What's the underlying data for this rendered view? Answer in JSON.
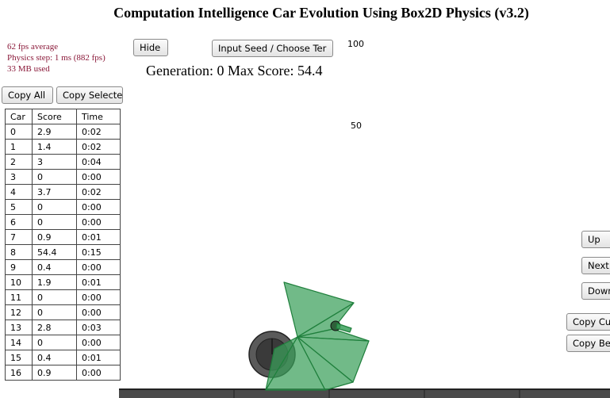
{
  "title": "Computation Intelligence Car Evolution Using Box2D Physics (v3.2)",
  "stats": [
    "62 fps average",
    "Physics step: 1 ms (882 fps)",
    "33 MB used"
  ],
  "buttons": {
    "hide": "Hide",
    "seed": "Input Seed / Choose Ter",
    "copy_all": "Copy All",
    "copy_selected": "Copy Selecte",
    "up": "Up",
    "next": "Next",
    "down": "Down",
    "copy_current": "Copy Cu",
    "copy_best": "Copy Be"
  },
  "generation_line": "Generation: 0  Max Score: 54.4",
  "graph_scale": {
    "top": "100",
    "mid": "50"
  },
  "table": {
    "headers": [
      "Car",
      "Score",
      "Time"
    ],
    "rows": [
      [
        "0",
        "2.9",
        "0:02"
      ],
      [
        "1",
        "1.4",
        "0:02"
      ],
      [
        "2",
        "3",
        "0:04"
      ],
      [
        "3",
        "0",
        "0:00"
      ],
      [
        "4",
        "3.7",
        "0:02"
      ],
      [
        "5",
        "0",
        "0:00"
      ],
      [
        "6",
        "0",
        "0:00"
      ],
      [
        "7",
        "0.9",
        "0:01"
      ],
      [
        "8",
        "54.4",
        "0:15"
      ],
      [
        "9",
        "0.4",
        "0:00"
      ],
      [
        "10",
        "1.9",
        "0:01"
      ],
      [
        "11",
        "0",
        "0:00"
      ],
      [
        "12",
        "0",
        "0:00"
      ],
      [
        "13",
        "2.8",
        "0:03"
      ],
      [
        "14",
        "0",
        "0:00"
      ],
      [
        "15",
        "0.4",
        "0:01"
      ],
      [
        "16",
        "0.9",
        "0:00"
      ]
    ]
  },
  "colors": {
    "car_body": "#3aa05a",
    "wheel": "#555555",
    "stats_text": "#8b1a3a"
  }
}
